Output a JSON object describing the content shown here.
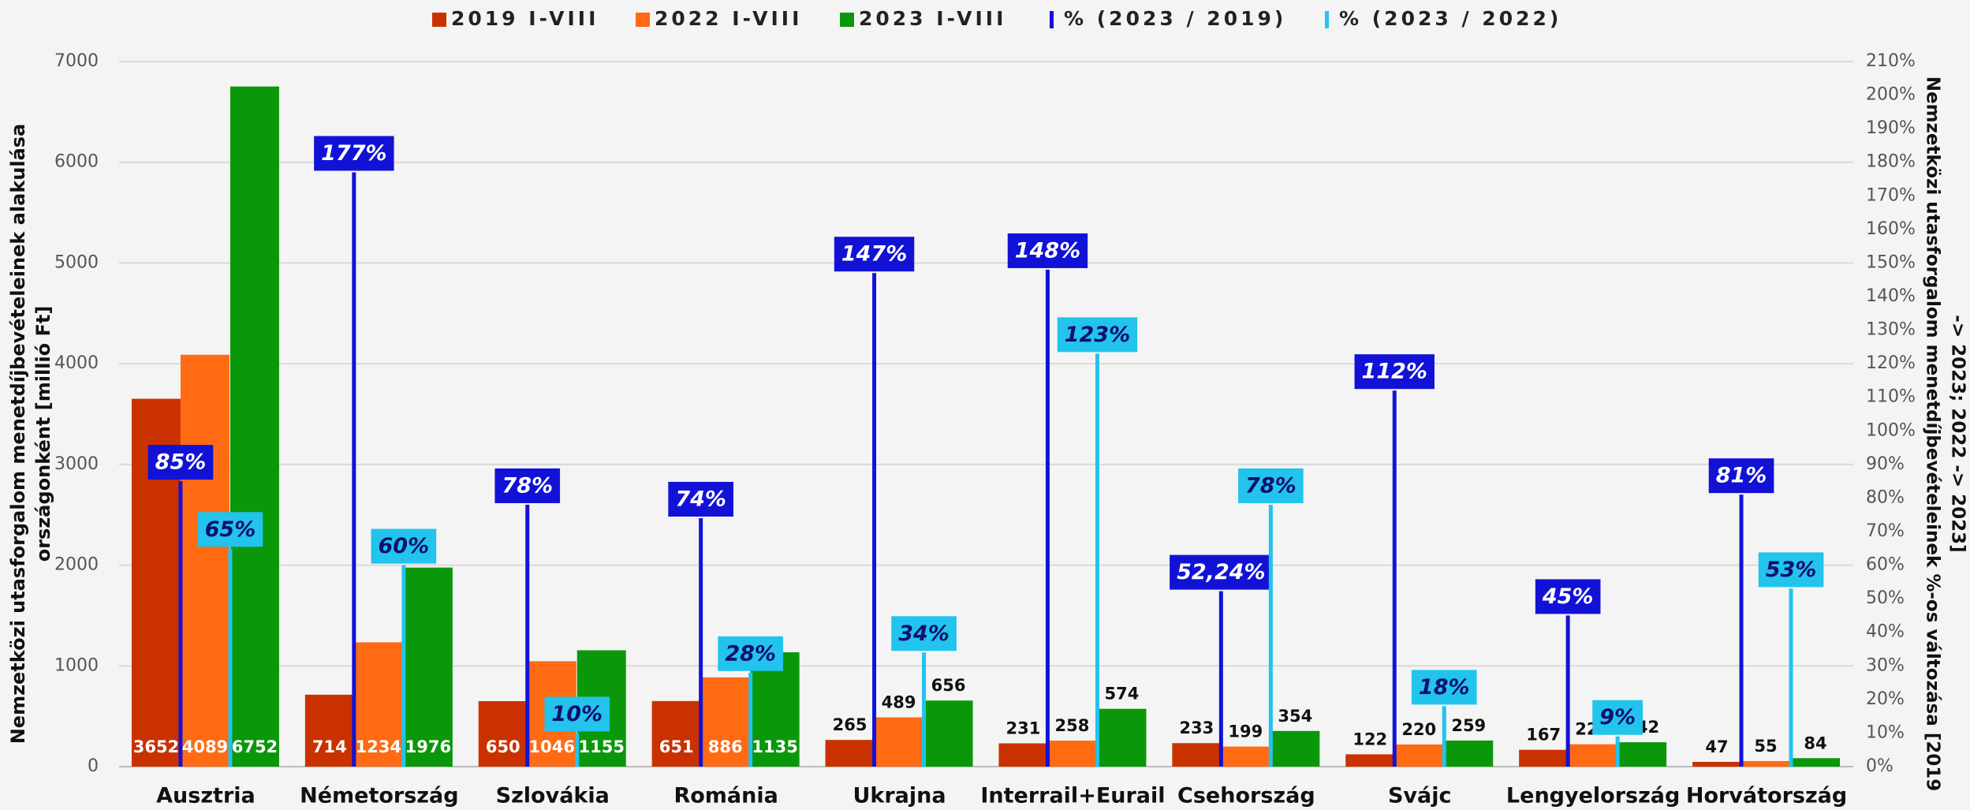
{
  "chart_data": {
    "type": "bar",
    "categories": [
      "Ausztria",
      "Németország",
      "Szlovákia",
      "Románia",
      "Ukrajna",
      "Interrail+Eurail",
      "Csehország",
      "Svájc",
      "Lengyelország",
      "Horvátország"
    ],
    "series": [
      {
        "name": "2019 I-VIII",
        "color": "#c93200",
        "values": [
          3652,
          714,
          650,
          651,
          265,
          231,
          233,
          122,
          167,
          47
        ]
      },
      {
        "name": "2022 I-VIII",
        "color": "#ff6a13",
        "values": [
          4089,
          1234,
          1046,
          886,
          489,
          258,
          199,
          220,
          222,
          55
        ]
      },
      {
        "name": "2023 I-VIII",
        "color": "#0a980a",
        "values": [
          6752,
          1976,
          1155,
          1135,
          656,
          574,
          354,
          259,
          242,
          84
        ]
      },
      {
        "name": "% (2023 / 2019)",
        "color": "#1212d6",
        "label_color": "#ffffff",
        "axis": "y2",
        "values": [
          85,
          177,
          78,
          74,
          147,
          148,
          52.24,
          112,
          45,
          81
        ],
        "value_labels": [
          "85%",
          "177%",
          "78%",
          "74%",
          "147%",
          "148%",
          "52,24%",
          "112%",
          "45%",
          "81%"
        ]
      },
      {
        "name": "% (2023 / 2022)",
        "color": "#22c3ec",
        "label_color": "#10106a",
        "axis": "y2",
        "values": [
          65,
          60,
          10,
          28,
          34,
          123,
          78,
          18,
          9,
          53
        ],
        "value_labels": [
          "65%",
          "60%",
          "10%",
          "28%",
          "34%",
          "123%",
          "78%",
          "18%",
          "9%",
          "53%"
        ]
      }
    ],
    "y_label": [
      "Nemzetközi utasforgalom menetdíjbevételeinek alakulása",
      "országonként [millió Ft]"
    ],
    "y2_label": [
      "Nemzetközi utasforgalom menetdíjbevételeinek %-os változása [2019",
      "-> 2023; 2022 -> 2023]"
    ],
    "ylim": [
      0,
      7000
    ],
    "yticks": [
      0,
      1000,
      2000,
      3000,
      4000,
      5000,
      6000,
      7000
    ],
    "y2lim": [
      0,
      210
    ],
    "y2ticks": [
      {
        "value": 0,
        "label": "0%"
      },
      {
        "value": 10,
        "label": "10%"
      },
      {
        "value": 20,
        "label": "20%"
      },
      {
        "value": 30,
        "label": "30%"
      },
      {
        "value": 40,
        "label": "40%"
      },
      {
        "value": 50,
        "label": "50%"
      },
      {
        "value": 60,
        "label": "60%"
      },
      {
        "value": 70,
        "label": "70%"
      },
      {
        "value": 80,
        "label": "80%"
      },
      {
        "value": 90,
        "label": "90%"
      },
      {
        "value": 100,
        "label": "100%"
      },
      {
        "value": 110,
        "label": "110%"
      },
      {
        "value": 120,
        "label": "120%"
      },
      {
        "value": 130,
        "label": "130%"
      },
      {
        "value": 140,
        "label": "140%"
      },
      {
        "value": 150,
        "label": "150%"
      },
      {
        "value": 160,
        "label": "160%"
      },
      {
        "value": 170,
        "label": "170%"
      },
      {
        "value": 180,
        "label": "180%"
      },
      {
        "value": 190,
        "label": "190%"
      },
      {
        "value": 200,
        "label": "200%"
      },
      {
        "value": 210,
        "label": "210%"
      }
    ],
    "grid": true,
    "legend": "top"
  }
}
